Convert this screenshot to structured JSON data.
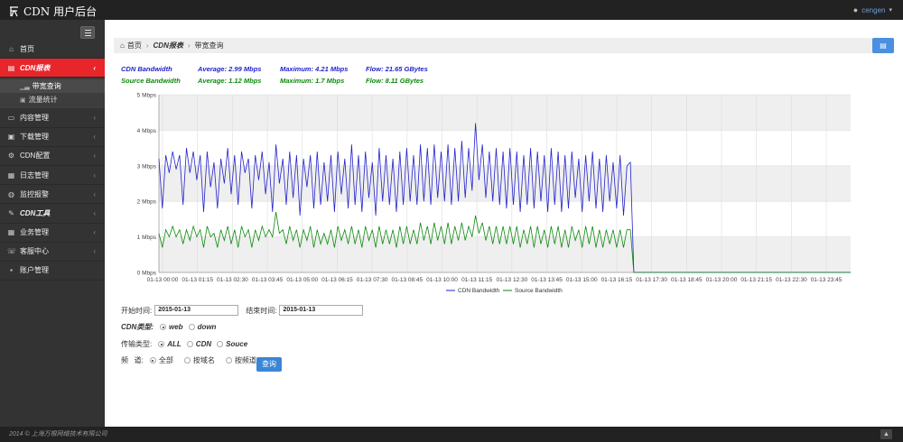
{
  "app": {
    "title": "CDN 用户后台",
    "user": "cengen"
  },
  "sidebar": {
    "items": [
      {
        "label": "首页",
        "icon": "home-icon",
        "glyph": "⌂"
      },
      {
        "label": "CDN报表",
        "icon": "chart-icon",
        "glyph": "▤",
        "active": true
      },
      {
        "label": "内容管理",
        "icon": "folder-icon",
        "glyph": "▭"
      },
      {
        "label": "下载管理",
        "icon": "download-icon",
        "glyph": "▣"
      },
      {
        "label": "CDN配置",
        "icon": "gears-icon",
        "glyph": "⚙"
      },
      {
        "label": "日志管理",
        "icon": "log-icon",
        "glyph": "▦"
      },
      {
        "label": "监控报警",
        "icon": "globe-icon",
        "glyph": "◍"
      },
      {
        "label": "CDN工具",
        "icon": "wrench-icon",
        "glyph": "✎"
      },
      {
        "label": "业务管理",
        "icon": "grid-icon",
        "glyph": "▦"
      },
      {
        "label": "客服中心",
        "icon": "headset-icon",
        "glyph": "☏"
      },
      {
        "label": "账户管理",
        "icon": "user-icon",
        "glyph": "▪"
      }
    ],
    "subitems": [
      {
        "label": "带宽查询",
        "icon": "bar-icon",
        "current": true
      },
      {
        "label": "流量统计",
        "icon": "image-icon",
        "current": false
      }
    ]
  },
  "breadcrumb": {
    "home": "首页",
    "level1": "CDN报表",
    "level2": "带宽查询"
  },
  "stats": {
    "cdn": {
      "name": "CDN Bandwidth",
      "average": "Average:  2.99 Mbps",
      "maximum": "Maximum:  4.21 Mbps",
      "flow": "Flow:  21.65 GBytes"
    },
    "source": {
      "name": "Source Bandwidth",
      "average": "Average:  1.12 Mbps",
      "maximum": "Maximum:  1.7 Mbps",
      "flow": "Flow:  8.11 GBytes"
    }
  },
  "form": {
    "start_label": "开始时间:",
    "start_value": "2015-01-13",
    "end_label": "结束时间:",
    "end_value": "2015-01-13",
    "cdn_type_label": "CDN类型:",
    "cdn_type_options": [
      "web",
      "down"
    ],
    "transfer_label": "传输类型:",
    "transfer_options": [
      "ALL",
      "CDN",
      "Souce"
    ],
    "channel_label": "频   道:",
    "channel_options": [
      "全部",
      "按域名",
      "按频道"
    ],
    "query_label": "查询"
  },
  "footer": {
    "text": "2014 © 上海万根网络技术有限公司"
  },
  "colors": {
    "cdn": "#2222cc",
    "source": "#0c8a0c",
    "accent": "#e8252b",
    "button": "#3a86d6"
  },
  "chart_data": {
    "type": "line",
    "y_ticks": [
      "0 Mbps",
      "1 Mbps",
      "2 Mbps",
      "3 Mbps",
      "4 Mbps",
      "5 Mbps"
    ],
    "ylim": [
      0,
      5
    ],
    "x_ticks": [
      "01-13 00:00",
      "01-13 01:15",
      "01-13 02:30",
      "01-13 03:45",
      "01-13 05:00",
      "01-13 06:15",
      "01-13 07:30",
      "01-13 08:45",
      "01-13 10:00",
      "01-13 11:15",
      "01-13 12:30",
      "01-13 13:45",
      "01-13 15:00",
      "01-13 16:15",
      "01-13 17:30",
      "01-13 18:45",
      "01-13 20:00",
      "01-13 21:15",
      "01-13 22:30",
      "01-13 23:45"
    ],
    "legend_position": "bottom-center",
    "series": [
      {
        "name": "CDN Bandwidth",
        "color": "#2222cc",
        "values": [
          3.2,
          1.8,
          3.3,
          2.8,
          3.4,
          2.9,
          3.3,
          1.9,
          3.5,
          2.8,
          3.4,
          2.6,
          3.3,
          1.7,
          3.4,
          2.4,
          3.1,
          1.8,
          3.2,
          2.5,
          3.5,
          2.2,
          3.3,
          1.9,
          3.4,
          2.8,
          3.2,
          1.8,
          3.3,
          2.6,
          3.4,
          2.2,
          3.1,
          1.7,
          3.6,
          2.5,
          3.2,
          1.9,
          3.4,
          2.1,
          3.3,
          1.6,
          3.2,
          2.4,
          3.3,
          1.8,
          3.4,
          1.9,
          3.1,
          2.0,
          3.3,
          1.7,
          3.4,
          2.2,
          3.2,
          1.8,
          3.6,
          1.9,
          3.3,
          1.7,
          3.4,
          2.1,
          3.1,
          1.6,
          3.5,
          2.0,
          3.3,
          1.9,
          3.2,
          1.7,
          3.4,
          1.9,
          3.5,
          2.0,
          3.3,
          1.9,
          3.6,
          2.0,
          3.5,
          1.9,
          3.6,
          2.1,
          3.4,
          2.0,
          3.6,
          1.9,
          3.5,
          2.0,
          3.7,
          2.1,
          3.5,
          2.3,
          4.2,
          2.6,
          3.6,
          2.1,
          3.4,
          2.0,
          3.5,
          1.9,
          3.4,
          1.8,
          3.5,
          1.9,
          3.4,
          1.7,
          3.3,
          1.9,
          3.5,
          1.8,
          3.4,
          2.0,
          3.3,
          1.7,
          3.5,
          1.9,
          3.4,
          1.7,
          3.3,
          1.8,
          3.4,
          2.1,
          3.2,
          1.7,
          3.3,
          2.0,
          3.4,
          1.8,
          3.2,
          1.7,
          3.3,
          2.0,
          3.1,
          1.8,
          3.3,
          1.6,
          3.0,
          3.1,
          0.0,
          0.0,
          0.0,
          0.0,
          0.0,
          0.0,
          0.0,
          0.0,
          0.0,
          0.0,
          0.0,
          0.0,
          0.0,
          0.0,
          0.0,
          0.0,
          0.0,
          0.0,
          0.0,
          0.0,
          0.0,
          0.0,
          0.0,
          0.0,
          0.0,
          0.0,
          0.0,
          0.0,
          0.0,
          0.0,
          0.0,
          0.0,
          0.0,
          0.0,
          0.0,
          0.0,
          0.0,
          0.0,
          0.0,
          0.0,
          0.0,
          0.0,
          0.0,
          0.0,
          0.0,
          0.0,
          0.0,
          0.0,
          0.0,
          0.0,
          0.0,
          0.0,
          0.0,
          0.0,
          0.0,
          0.0,
          0.0,
          0.0,
          0.0,
          0.0,
          0.0,
          0.0,
          0.0,
          0.0
        ]
      },
      {
        "name": "Source Bandwidth",
        "color": "#0c8a0c",
        "values": [
          1.1,
          0.7,
          1.2,
          1.0,
          1.3,
          1.0,
          1.2,
          0.8,
          1.2,
          0.9,
          1.3,
          1.0,
          1.2,
          0.7,
          1.3,
          1.0,
          1.1,
          0.7,
          1.2,
          0.9,
          1.3,
          0.8,
          1.2,
          0.7,
          1.3,
          1.0,
          1.2,
          0.7,
          1.2,
          0.9,
          1.3,
          1.0,
          1.2,
          1.0,
          1.7,
          1.1,
          1.2,
          0.8,
          1.3,
          0.9,
          1.2,
          0.7,
          1.2,
          0.9,
          1.3,
          0.7,
          1.2,
          0.8,
          1.1,
          0.8,
          1.2,
          0.7,
          1.3,
          0.9,
          1.2,
          0.8,
          1.3,
          0.8,
          1.2,
          0.7,
          1.3,
          0.9,
          1.2,
          0.7,
          1.3,
          0.8,
          1.2,
          0.8,
          1.2,
          0.7,
          1.3,
          0.8,
          1.3,
          0.8,
          1.2,
          0.8,
          1.4,
          0.9,
          1.3,
          0.8,
          1.4,
          0.9,
          1.3,
          0.8,
          1.4,
          0.8,
          1.3,
          0.9,
          1.4,
          0.9,
          1.3,
          1.0,
          1.6,
          1.1,
          1.4,
          0.9,
          1.3,
          0.8,
          1.3,
          0.8,
          1.3,
          0.8,
          1.3,
          0.8,
          1.3,
          0.7,
          1.2,
          0.8,
          1.3,
          0.7,
          1.3,
          0.8,
          1.2,
          0.7,
          1.3,
          0.8,
          1.3,
          0.7,
          1.2,
          0.7,
          1.3,
          0.9,
          1.2,
          0.7,
          1.3,
          0.8,
          1.3,
          0.7,
          1.2,
          0.7,
          1.2,
          0.8,
          1.2,
          0.7,
          1.2,
          0.7,
          1.2,
          1.2,
          0.0,
          0.0,
          0.0,
          0.0,
          0.0,
          0.0,
          0.0,
          0.0,
          0.0,
          0.0,
          0.0,
          0.0,
          0.0,
          0.0,
          0.0,
          0.0,
          0.0,
          0.0,
          0.0,
          0.0,
          0.0,
          0.0,
          0.0,
          0.0,
          0.0,
          0.0,
          0.0,
          0.0,
          0.0,
          0.0,
          0.0,
          0.0,
          0.0,
          0.0,
          0.0,
          0.0,
          0.0,
          0.0,
          0.0,
          0.0,
          0.0,
          0.0,
          0.0,
          0.0,
          0.0,
          0.0,
          0.0,
          0.0,
          0.0,
          0.0,
          0.0,
          0.0,
          0.0,
          0.0,
          0.0,
          0.0,
          0.0,
          0.0,
          0.0,
          0.0,
          0.0,
          0.0,
          0.0,
          0.0
        ]
      }
    ]
  }
}
